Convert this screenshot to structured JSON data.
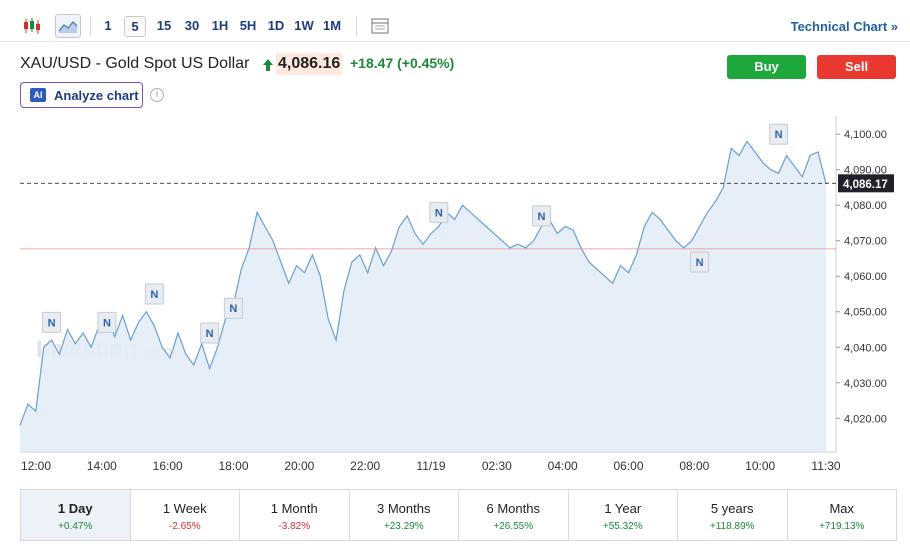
{
  "toolbar": {
    "candle_icon": "candlestick-icon",
    "area_icon": "area-chart-icon",
    "intervals": [
      "1",
      "5",
      "15",
      "30",
      "1H",
      "5H",
      "1D",
      "1W",
      "1M"
    ],
    "active_interval": "5",
    "layout_icon": "layout-icon",
    "technical_link": "Technical Chart »"
  },
  "instrument": {
    "name": "XAU/USD - Gold Spot US Dollar",
    "price": "4,086.16",
    "change": "+18.47 (+0.45%)",
    "direction_icon": "up-arrow-icon"
  },
  "actions": {
    "buy": "Buy",
    "sell": "Sell",
    "analyze": "Analyze chart",
    "ai_badge": "AI",
    "info": "i"
  },
  "watermark": {
    "brand": "Investing",
    "suffix": ".com"
  },
  "colors": {
    "up": "#1b8a3a",
    "down": "#d32f2f",
    "buy": "#1ea83c",
    "sell": "#e8382f",
    "line": "#6a9fd0",
    "area": "#e3ecf6",
    "ref_line": "#f08a8a"
  },
  "chart_data": {
    "type": "area",
    "x_ticks": [
      "12:00",
      "14:00",
      "16:00",
      "18:00",
      "20:00",
      "22:00",
      "11/19",
      "02:30",
      "04:00",
      "06:00",
      "08:00",
      "10:00",
      "11:30"
    ],
    "y_ticks": [
      4020,
      4030,
      4040,
      4050,
      4060,
      4070,
      4080,
      4090,
      4100
    ],
    "ylim": [
      4010.5,
      4104
    ],
    "last_price_label": "4,086.17",
    "last_price": 4086.17,
    "reference_line": 4067.7,
    "series": [
      {
        "values": [
          4018,
          4024,
          4022,
          4040,
          4042,
          4038,
          4045,
          4041,
          4044,
          4040,
          4046,
          4048,
          4043,
          4049,
          4042,
          4047,
          4050,
          4046,
          4040,
          4037,
          4044,
          4038,
          4035,
          4041,
          4034,
          4040,
          4048,
          4052,
          4062,
          4068,
          4078,
          4074,
          4070,
          4064,
          4058,
          4063,
          4061,
          4066,
          4060,
          4048,
          4042,
          4056,
          4064,
          4066,
          4061,
          4068,
          4063,
          4067,
          4074,
          4077,
          4072,
          4069,
          4072,
          4074,
          4078,
          4076,
          4080,
          4078,
          4076,
          4074,
          4072,
          4070,
          4068,
          4069,
          4068,
          4070,
          4074,
          4076,
          4072,
          4074,
          4073,
          4068,
          4064,
          4062,
          4060,
          4058,
          4063,
          4061,
          4066,
          4074,
          4078,
          4076,
          4073,
          4070,
          4068,
          4070,
          4074,
          4078,
          4081,
          4085,
          4096,
          4094,
          4098,
          4095,
          4092,
          4090,
          4089,
          4094,
          4091,
          4088,
          4094,
          4095,
          4086
        ]
      }
    ],
    "news_markers": [
      {
        "label": "N",
        "x_index": 4,
        "value": 4047
      },
      {
        "label": "N",
        "x_index": 11,
        "value": 4047
      },
      {
        "label": "N",
        "x_index": 17,
        "value": 4055
      },
      {
        "label": "N",
        "x_index": 24,
        "value": 4044
      },
      {
        "label": "N",
        "x_index": 27,
        "value": 4051
      },
      {
        "label": "N",
        "x_index": 53,
        "value": 4078
      },
      {
        "label": "N",
        "x_index": 66,
        "value": 4077
      },
      {
        "label": "N",
        "x_index": 86,
        "value": 4064
      },
      {
        "label": "N",
        "x_index": 96,
        "value": 4100
      }
    ]
  },
  "periods": [
    {
      "label": "1 Day",
      "change": "+0.47%",
      "dir": "pos",
      "active": true
    },
    {
      "label": "1 Week",
      "change": "-2.65%",
      "dir": "neg",
      "active": false
    },
    {
      "label": "1 Month",
      "change": "-3.82%",
      "dir": "neg",
      "active": false
    },
    {
      "label": "3 Months",
      "change": "+23.29%",
      "dir": "pos",
      "active": false
    },
    {
      "label": "6 Months",
      "change": "+26.55%",
      "dir": "pos",
      "active": false
    },
    {
      "label": "1 Year",
      "change": "+55.32%",
      "dir": "pos",
      "active": false
    },
    {
      "label": "5 years",
      "change": "+118.89%",
      "dir": "pos",
      "active": false
    },
    {
      "label": "Max",
      "change": "+719.13%",
      "dir": "pos",
      "active": false
    }
  ]
}
